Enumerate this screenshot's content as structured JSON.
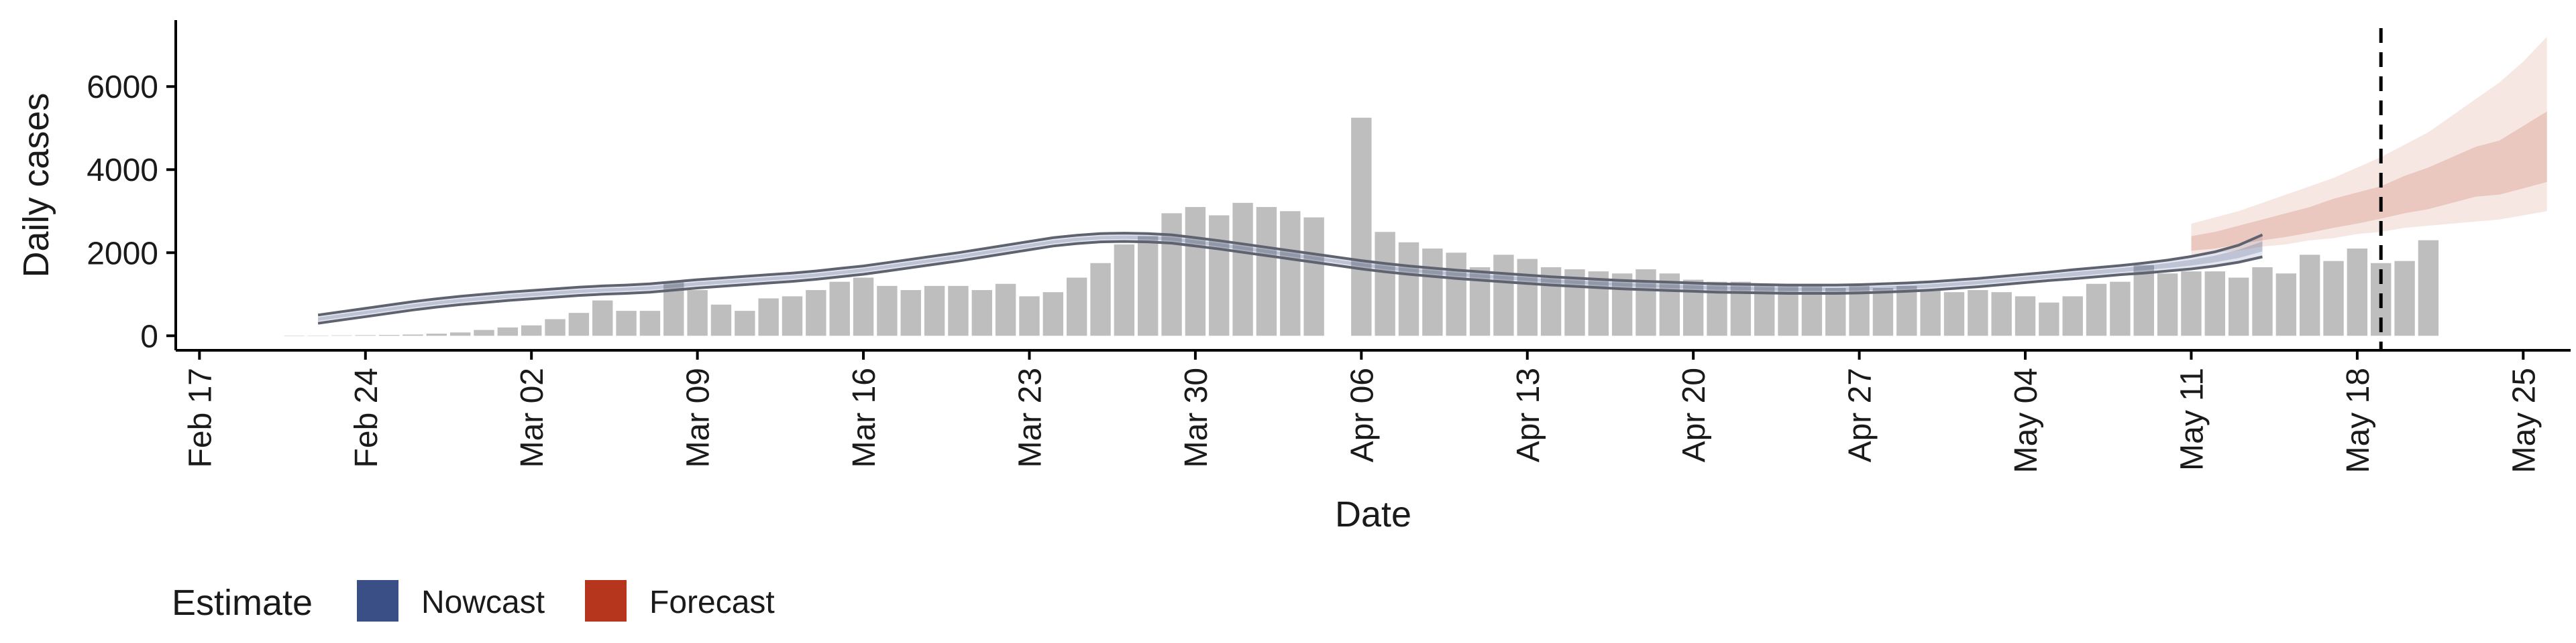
{
  "chart_data": {
    "type": "bar",
    "xlabel": "Date",
    "ylabel": "Daily cases",
    "xlim": [
      "2020-02-16",
      "2020-05-27"
    ],
    "ylim": [
      -350,
      7600
    ],
    "x_ticks": [
      "2020-02-17",
      "2020-02-24",
      "2020-03-02",
      "2020-03-09",
      "2020-03-16",
      "2020-03-23",
      "2020-03-30",
      "2020-04-06",
      "2020-04-13",
      "2020-04-20",
      "2020-04-27",
      "2020-05-04",
      "2020-05-11",
      "2020-05-18",
      "2020-05-25"
    ],
    "x_tick_labels": [
      "Feb 17",
      "Feb 24",
      "Mar 02",
      "Mar 09",
      "Mar 16",
      "Mar 23",
      "Mar 30",
      "Apr 06",
      "Apr 13",
      "Apr 20",
      "Apr 27",
      "May 04",
      "May 11",
      "May 18",
      "May 25"
    ],
    "y_ticks": [
      0,
      2000,
      4000,
      6000
    ],
    "y_tick_labels": [
      "0",
      "2000",
      "4000",
      "6000"
    ],
    "vline_date": "2020-05-19",
    "bars": {
      "name": "Daily cases",
      "color": "#bebebe",
      "start": "2020-02-21",
      "values": [
        3,
        6,
        10,
        15,
        20,
        30,
        50,
        80,
        140,
        200,
        250,
        400,
        550,
        850,
        600,
        600,
        1300,
        1100,
        750,
        600,
        900,
        950,
        1100,
        1300,
        1400,
        1200,
        1100,
        1200,
        1200,
        1100,
        1250,
        950,
        1050,
        1400,
        1750,
        2200,
        2400,
        2950,
        3100,
        2900,
        3200,
        3100,
        3000,
        2850,
        0,
        5250,
        2500,
        2250,
        2100,
        2000,
        1650,
        1950,
        1850,
        1650,
        1600,
        1550,
        1500,
        1600,
        1500,
        1350,
        1300,
        1300,
        1250,
        1250,
        1200,
        1150,
        1200,
        1150,
        1200,
        1100,
        1050,
        1100,
        1050,
        950,
        800,
        950,
        1250,
        1300,
        1700,
        1500,
        1550,
        1550,
        1400,
        1650,
        1500,
        1950,
        1800,
        2100,
        1750,
        1800,
        2300
      ]
    },
    "series": [
      {
        "name": "Nowcast",
        "color": "#3a4f86",
        "start": "2020-02-22",
        "median": [
          400,
          480,
          560,
          640,
          720,
          790,
          850,
          900,
          950,
          990,
          1030,
          1070,
          1100,
          1120,
          1150,
          1200,
          1250,
          1290,
          1330,
          1370,
          1410,
          1460,
          1520,
          1580,
          1660,
          1740,
          1820,
          1900,
          1990,
          2080,
          2170,
          2260,
          2320,
          2360,
          2370,
          2360,
          2330,
          2260,
          2190,
          2110,
          2030,
          1950,
          1870,
          1790,
          1710,
          1640,
          1580,
          1530,
          1480,
          1440,
          1400,
          1360,
          1320,
          1290,
          1260,
          1230,
          1210,
          1190,
          1170,
          1150,
          1140,
          1130,
          1120,
          1120,
          1120,
          1130,
          1150,
          1170,
          1200,
          1240,
          1280,
          1330,
          1380,
          1430,
          1480,
          1530,
          1580,
          1630,
          1690,
          1760,
          1850,
          1970,
          2150
        ],
        "lower_50": [
          360,
          440,
          520,
          600,
          680,
          750,
          810,
          860,
          910,
          950,
          990,
          1030,
          1060,
          1080,
          1110,
          1160,
          1210,
          1250,
          1290,
          1330,
          1370,
          1420,
          1480,
          1540,
          1620,
          1700,
          1780,
          1860,
          1950,
          2040,
          2130,
          2220,
          2280,
          2320,
          2330,
          2320,
          2290,
          2220,
          2150,
          2070,
          1990,
          1910,
          1830,
          1750,
          1670,
          1600,
          1540,
          1490,
          1440,
          1400,
          1360,
          1320,
          1280,
          1250,
          1220,
          1190,
          1170,
          1150,
          1130,
          1110,
          1100,
          1090,
          1080,
          1080,
          1080,
          1090,
          1110,
          1130,
          1160,
          1200,
          1240,
          1290,
          1340,
          1390,
          1430,
          1480,
          1530,
          1580,
          1630,
          1690,
          1770,
          1870,
          2030
        ],
        "upper_50": [
          440,
          520,
          600,
          680,
          760,
          830,
          890,
          940,
          990,
          1030,
          1070,
          1110,
          1140,
          1160,
          1190,
          1240,
          1290,
          1330,
          1370,
          1410,
          1450,
          1500,
          1560,
          1620,
          1700,
          1780,
          1860,
          1940,
          2030,
          2120,
          2210,
          2300,
          2360,
          2400,
          2410,
          2400,
          2370,
          2300,
          2230,
          2150,
          2070,
          1990,
          1910,
          1830,
          1750,
          1680,
          1620,
          1570,
          1520,
          1480,
          1440,
          1400,
          1360,
          1330,
          1300,
          1270,
          1250,
          1230,
          1210,
          1190,
          1180,
          1170,
          1160,
          1160,
          1160,
          1170,
          1190,
          1210,
          1240,
          1280,
          1320,
          1370,
          1420,
          1470,
          1530,
          1580,
          1630,
          1680,
          1750,
          1830,
          1930,
          2070,
          2270
        ],
        "lower_90": [
          300,
          380,
          460,
          540,
          620,
          690,
          750,
          800,
          850,
          890,
          930,
          970,
          1000,
          1020,
          1050,
          1100,
          1150,
          1190,
          1230,
          1270,
          1310,
          1360,
          1420,
          1480,
          1560,
          1640,
          1720,
          1800,
          1890,
          1980,
          2070,
          2160,
          2220,
          2260,
          2270,
          2260,
          2230,
          2160,
          2090,
          2010,
          1930,
          1850,
          1770,
          1690,
          1610,
          1540,
          1480,
          1430,
          1380,
          1340,
          1300,
          1260,
          1220,
          1190,
          1160,
          1130,
          1110,
          1090,
          1070,
          1050,
          1040,
          1030,
          1020,
          1020,
          1020,
          1030,
          1050,
          1070,
          1100,
          1140,
          1180,
          1230,
          1280,
          1330,
          1370,
          1420,
          1470,
          1510,
          1560,
          1610,
          1680,
          1770,
          1900
        ],
        "upper_90": [
          500,
          580,
          660,
          740,
          820,
          890,
          950,
          1000,
          1050,
          1090,
          1130,
          1170,
          1200,
          1220,
          1250,
          1300,
          1350,
          1390,
          1430,
          1470,
          1510,
          1560,
          1620,
          1680,
          1760,
          1840,
          1920,
          2000,
          2090,
          2180,
          2270,
          2360,
          2420,
          2460,
          2470,
          2460,
          2430,
          2360,
          2290,
          2210,
          2130,
          2050,
          1970,
          1890,
          1810,
          1740,
          1680,
          1630,
          1580,
          1540,
          1500,
          1460,
          1420,
          1390,
          1360,
          1330,
          1310,
          1290,
          1270,
          1250,
          1240,
          1230,
          1220,
          1220,
          1220,
          1230,
          1250,
          1270,
          1300,
          1340,
          1380,
          1430,
          1480,
          1530,
          1590,
          1640,
          1690,
          1750,
          1820,
          1910,
          2020,
          2180,
          2430
        ]
      },
      {
        "name": "Forecast",
        "color": "#b5361c",
        "start": "2020-05-11",
        "median": [
          2200,
          2300,
          2420,
          2520,
          2640,
          2760,
          2900,
          3050,
          3200,
          3380,
          3550,
          3750,
          3950,
          4150,
          4350,
          4550
        ],
        "lower_50": [
          2050,
          2100,
          2200,
          2300,
          2380,
          2480,
          2600,
          2700,
          2820,
          2950,
          3050,
          3200,
          3350,
          3400,
          3550,
          3700
        ],
        "upper_50": [
          2400,
          2500,
          2650,
          2800,
          2950,
          3100,
          3300,
          3450,
          3600,
          3850,
          4050,
          4300,
          4550,
          4700,
          5050,
          5400
        ],
        "lower_90": [
          1900,
          2000,
          2050,
          2150,
          2200,
          2300,
          2350,
          2450,
          2500,
          2600,
          2650,
          2700,
          2750,
          2800,
          2900,
          3000
        ],
        "upper_90": [
          2700,
          2850,
          3000,
          3200,
          3400,
          3600,
          3800,
          4050,
          4300,
          4600,
          4900,
          5300,
          5700,
          6100,
          6600,
          7200
        ]
      }
    ],
    "legend": {
      "position": "bottom-left",
      "title": "Estimate",
      "items": [
        {
          "label": "Nowcast",
          "color": "#3a4f86"
        },
        {
          "label": "Forecast",
          "color": "#b5361c"
        }
      ]
    },
    "grid": false
  }
}
